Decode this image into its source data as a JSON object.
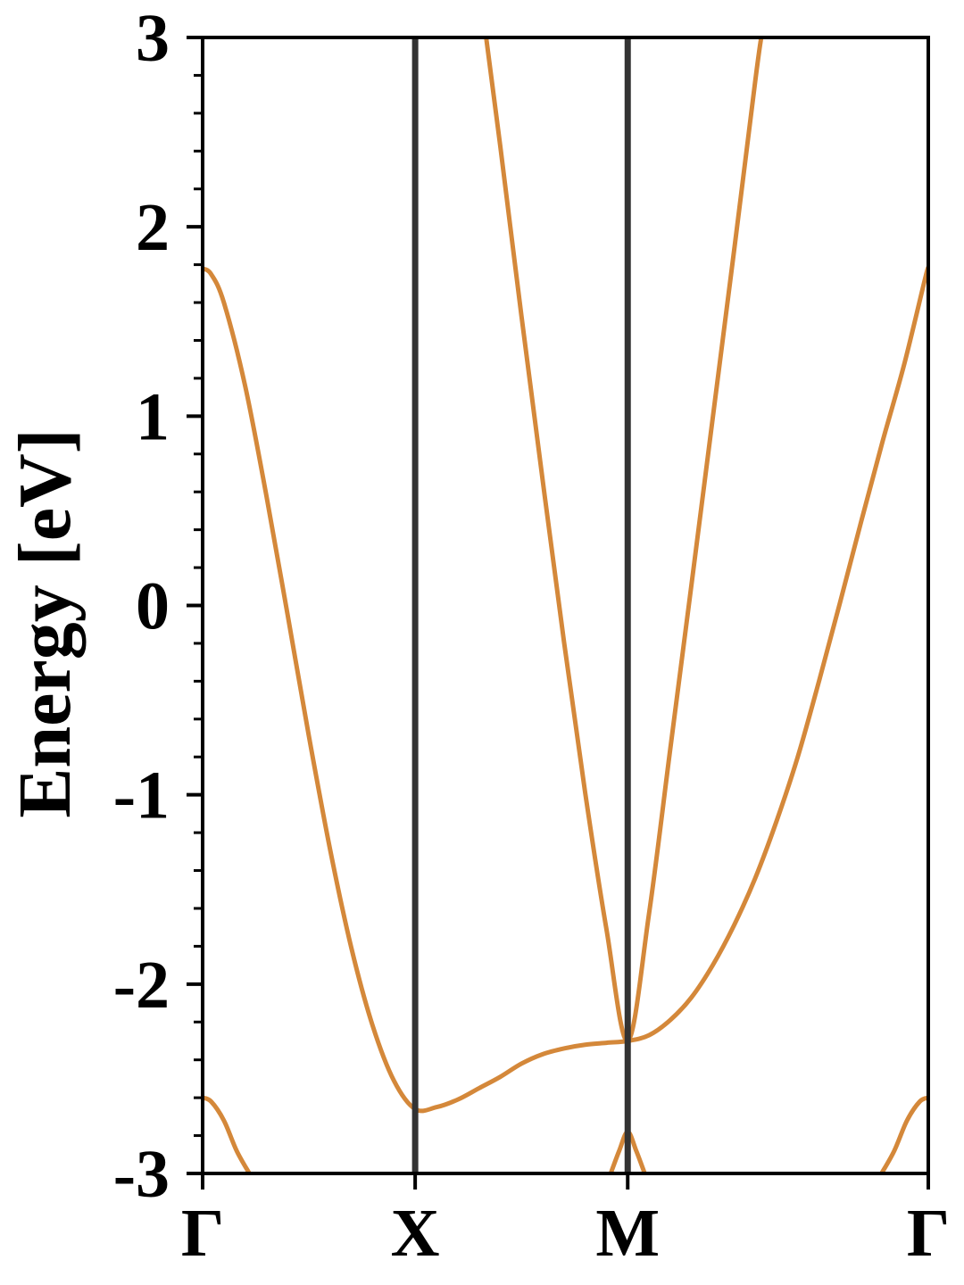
{
  "chart_data": {
    "type": "line",
    "title": "",
    "xlabel": "",
    "ylabel": "Energy [eV]",
    "ylim": [
      -3,
      3
    ],
    "yticks": [
      3,
      2,
      1,
      0,
      -1,
      -2,
      -3
    ],
    "ytick_labels": [
      "3",
      "2",
      "1",
      "0",
      "-1",
      "-2",
      "-3"
    ],
    "y_minor_step": 0.2,
    "x_path": [
      "Γ",
      "X",
      "M",
      "Γ"
    ],
    "x_path_positions": [
      0,
      0.5,
      1.0,
      1.7071
    ],
    "xlim": [
      0,
      1.7071
    ],
    "high_symmetry_vlines": [
      0.5,
      1.0
    ],
    "grid": false,
    "legend": "none",
    "colors": {
      "band": "#d4883a",
      "vline": "#333333",
      "axes": "#000000"
    },
    "series": [
      {
        "values": [
          [
            0.0,
            1.78
          ],
          [
            0.02,
            1.75
          ],
          [
            0.05,
            1.6
          ],
          [
            0.1,
            1.16
          ],
          [
            0.15,
            0.58
          ],
          [
            0.2,
            -0.05
          ],
          [
            0.25,
            -0.69
          ],
          [
            0.3,
            -1.29
          ],
          [
            0.35,
            -1.81
          ],
          [
            0.4,
            -2.22
          ],
          [
            0.45,
            -2.51
          ],
          [
            0.5,
            -2.66
          ],
          [
            0.55,
            -2.65
          ],
          [
            0.6,
            -2.61
          ],
          [
            0.65,
            -2.55
          ],
          [
            0.7,
            -2.49
          ],
          [
            0.75,
            -2.42
          ],
          [
            0.8,
            -2.37
          ],
          [
            0.85,
            -2.34
          ],
          [
            0.9,
            -2.32
          ],
          [
            0.95,
            -2.31
          ],
          [
            1.0,
            -2.3
          ],
          [
            1.05,
            -2.27
          ],
          [
            1.1,
            -2.19
          ],
          [
            1.15,
            -2.07
          ],
          [
            1.2,
            -1.9
          ],
          [
            1.25,
            -1.69
          ],
          [
            1.3,
            -1.44
          ],
          [
            1.35,
            -1.14
          ],
          [
            1.4,
            -0.8
          ],
          [
            1.45,
            -0.4
          ],
          [
            1.5,
            0.02
          ],
          [
            1.55,
            0.45
          ],
          [
            1.6,
            0.87
          ],
          [
            1.65,
            1.27
          ],
          [
            1.7,
            1.73
          ],
          [
            1.7071,
            1.78
          ]
        ]
      },
      {
        "values": [
          [
            0.667,
            3.0
          ],
          [
            0.7,
            2.43
          ],
          [
            0.75,
            1.53
          ],
          [
            0.8,
            0.66
          ],
          [
            0.85,
            -0.19
          ],
          [
            0.9,
            -0.99
          ],
          [
            0.95,
            -1.71
          ],
          [
            1.0,
            -2.3
          ],
          [
            1.05,
            -1.63
          ],
          [
            1.1,
            -0.76
          ],
          [
            1.15,
            0.11
          ],
          [
            1.2,
            0.99
          ],
          [
            1.25,
            1.87
          ],
          [
            1.3,
            2.77
          ],
          [
            1.314,
            3.0
          ]
        ]
      },
      {
        "values": [
          [
            0.0,
            -2.6
          ],
          [
            0.02,
            -2.62
          ],
          [
            0.05,
            -2.72
          ],
          [
            0.08,
            -2.88
          ],
          [
            0.11,
            -3.0
          ]
        ]
      },
      {
        "values": [
          [
            0.96,
            -3.0
          ],
          [
            0.98,
            -2.88
          ],
          [
            1.0,
            -2.78
          ],
          [
            1.02,
            -2.88
          ],
          [
            1.04,
            -3.0
          ]
        ]
      },
      {
        "values": [
          [
            1.5971,
            -3.0
          ],
          [
            1.6271,
            -2.88
          ],
          [
            1.6571,
            -2.72
          ],
          [
            1.6871,
            -2.62
          ],
          [
            1.7071,
            -2.6
          ]
        ]
      }
    ]
  }
}
